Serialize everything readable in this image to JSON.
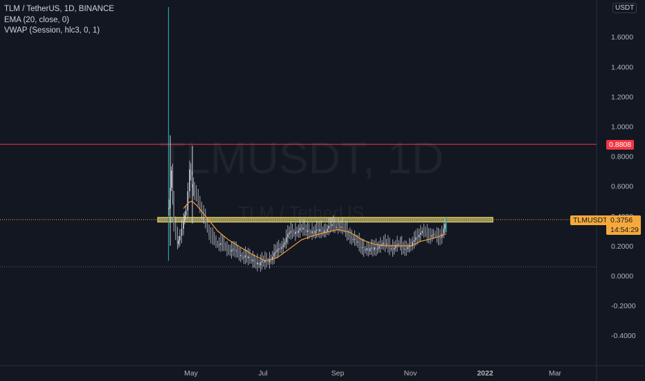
{
  "legend": {
    "title": "TLM / TetherUS, 1D, BINANCE",
    "indicator1": "EMA (20, close, 0)",
    "indicator2": "VWAP (Session, hlc3, 0, 1)"
  },
  "unit_button": "USDT",
  "watermark": {
    "symbol": "TLMUSDT, 1D",
    "name": "TLM / TetherUS"
  },
  "red_level": {
    "value": 0.8808,
    "label": "0.8808"
  },
  "current": {
    "symbol": "TLMUSDT",
    "price": "0.3756",
    "countdown": "14:54:29"
  },
  "colors": {
    "background": "#131722",
    "up": "#26a69a",
    "down": "#ef5350",
    "ema": "#f7a13b",
    "red_line": "#f23645",
    "highlight": "#f0e68c"
  },
  "chart_data": {
    "type": "candlestick",
    "title": "TLM / TetherUS, 1D, BINANCE",
    "ylim": [
      -0.5,
      1.8
    ],
    "y_ticks": [
      1.6,
      1.4,
      1.2,
      1.0,
      0.8,
      0.6,
      0.4,
      0.2,
      0.0,
      -0.2,
      -0.4
    ],
    "y_tick_labels": [
      "1.6000",
      "1.4000",
      "1.2000",
      "1.0000",
      "0.8000",
      "0.6000",
      "0.4000",
      "0.2000",
      "0.0000",
      "-0.2000",
      "-0.4000"
    ],
    "x_ticks": [
      "May",
      "Jul",
      "Sep",
      "Nov",
      "2022",
      "Mar"
    ],
    "top_edge_tick": "1",
    "series": [
      {
        "type": "close-path",
        "points": [
          [
            "Apr 14",
            0.45
          ],
          [
            "Apr 16",
            0.7
          ],
          [
            "Apr 18",
            0.35
          ],
          [
            "Apr 21",
            0.2
          ],
          [
            "Apr 23",
            0.28
          ],
          [
            "Apr 26",
            0.35
          ],
          [
            "Apr 28",
            0.45
          ],
          [
            "May 1",
            0.7
          ],
          [
            "May 3",
            0.62
          ],
          [
            "May 5",
            0.55
          ],
          [
            "May 8",
            0.5
          ],
          [
            "May 11",
            0.42
          ],
          [
            "May 14",
            0.35
          ],
          [
            "May 17",
            0.28
          ],
          [
            "May 20",
            0.24
          ],
          [
            "May 24",
            0.22
          ],
          [
            "May 28",
            0.2
          ],
          [
            "Jun 2",
            0.18
          ],
          [
            "Jun 7",
            0.16
          ],
          [
            "Jun 12",
            0.14
          ],
          [
            "Jun 17",
            0.12
          ],
          [
            "Jun 22",
            0.1
          ],
          [
            "Jun 27",
            0.08
          ],
          [
            "Jul 2",
            0.09
          ],
          [
            "Jul 7",
            0.12
          ],
          [
            "Jul 12",
            0.16
          ],
          [
            "Jul 17",
            0.22
          ],
          [
            "Jul 22",
            0.28
          ],
          [
            "Jul 27",
            0.3
          ],
          [
            "Aug 1",
            0.31
          ],
          [
            "Aug 6",
            0.3
          ],
          [
            "Aug 11",
            0.29
          ],
          [
            "Aug 16",
            0.3
          ],
          [
            "Aug 21",
            0.31
          ],
          [
            "Aug 26",
            0.33
          ],
          [
            "Aug 31",
            0.34
          ],
          [
            "Sep 5",
            0.3
          ],
          [
            "Sep 10",
            0.27
          ],
          [
            "Sep 15",
            0.22
          ],
          [
            "Sep 20",
            0.19
          ],
          [
            "Sep 25",
            0.17
          ],
          [
            "Sep 30",
            0.18
          ],
          [
            "Oct 5",
            0.21
          ],
          [
            "Oct 10",
            0.2
          ],
          [
            "Oct 15",
            0.19
          ],
          [
            "Oct 20",
            0.2
          ],
          [
            "Oct 25",
            0.19
          ],
          [
            "Oct 30",
            0.19
          ],
          [
            "Nov 3",
            0.26
          ],
          [
            "Nov 7",
            0.29
          ],
          [
            "Nov 11",
            0.28
          ],
          [
            "Nov 15",
            0.27
          ],
          [
            "Nov 19",
            0.26
          ],
          [
            "Nov 23",
            0.27
          ],
          [
            "Nov 26",
            0.3
          ],
          [
            "Nov 28",
            0.3756
          ]
        ]
      },
      {
        "name": "EMA (20, close, 0)",
        "type": "line",
        "points": [
          [
            "Apr 26",
            0.45
          ],
          [
            "Apr 30",
            0.49
          ],
          [
            "May 3",
            0.5
          ],
          [
            "May 7",
            0.47
          ],
          [
            "May 12",
            0.42
          ],
          [
            "May 18",
            0.36
          ],
          [
            "May 24",
            0.3
          ],
          [
            "Jun 2",
            0.24
          ],
          [
            "Jun 12",
            0.19
          ],
          [
            "Jun 22",
            0.14
          ],
          [
            "Jul 2",
            0.1
          ],
          [
            "Jul 12",
            0.12
          ],
          [
            "Jul 22",
            0.18
          ],
          [
            "Aug 1",
            0.24
          ],
          [
            "Aug 11",
            0.27
          ],
          [
            "Aug 21",
            0.29
          ],
          [
            "Aug 31",
            0.31
          ],
          [
            "Sep 10",
            0.29
          ],
          [
            "Sep 20",
            0.24
          ],
          [
            "Sep 30",
            0.21
          ],
          [
            "Oct 10",
            0.2
          ],
          [
            "Oct 20",
            0.2
          ],
          [
            "Oct 30",
            0.2
          ],
          [
            "Nov 7",
            0.23
          ],
          [
            "Nov 17",
            0.25
          ],
          [
            "Nov 28",
            0.28
          ]
        ]
      }
    ],
    "spike": {
      "date": "Apr 13",
      "high": 1.8,
      "low": 0.1
    },
    "key_candles": [
      {
        "date": "Apr 14",
        "high": 0.94,
        "low": 0.2
      },
      {
        "date": "May 2",
        "high": 0.87,
        "low": 0.35
      }
    ],
    "horizontal_lines": [
      {
        "value": 0.8808,
        "style": "solid"
      },
      {
        "value": 0.3756,
        "style": "dotted"
      },
      {
        "value": 0.06,
        "style": "dotted"
      }
    ],
    "highlight_band": {
      "from": "Apr 10",
      "to": "Jan 4",
      "low": 0.36,
      "high": 0.39
    }
  }
}
